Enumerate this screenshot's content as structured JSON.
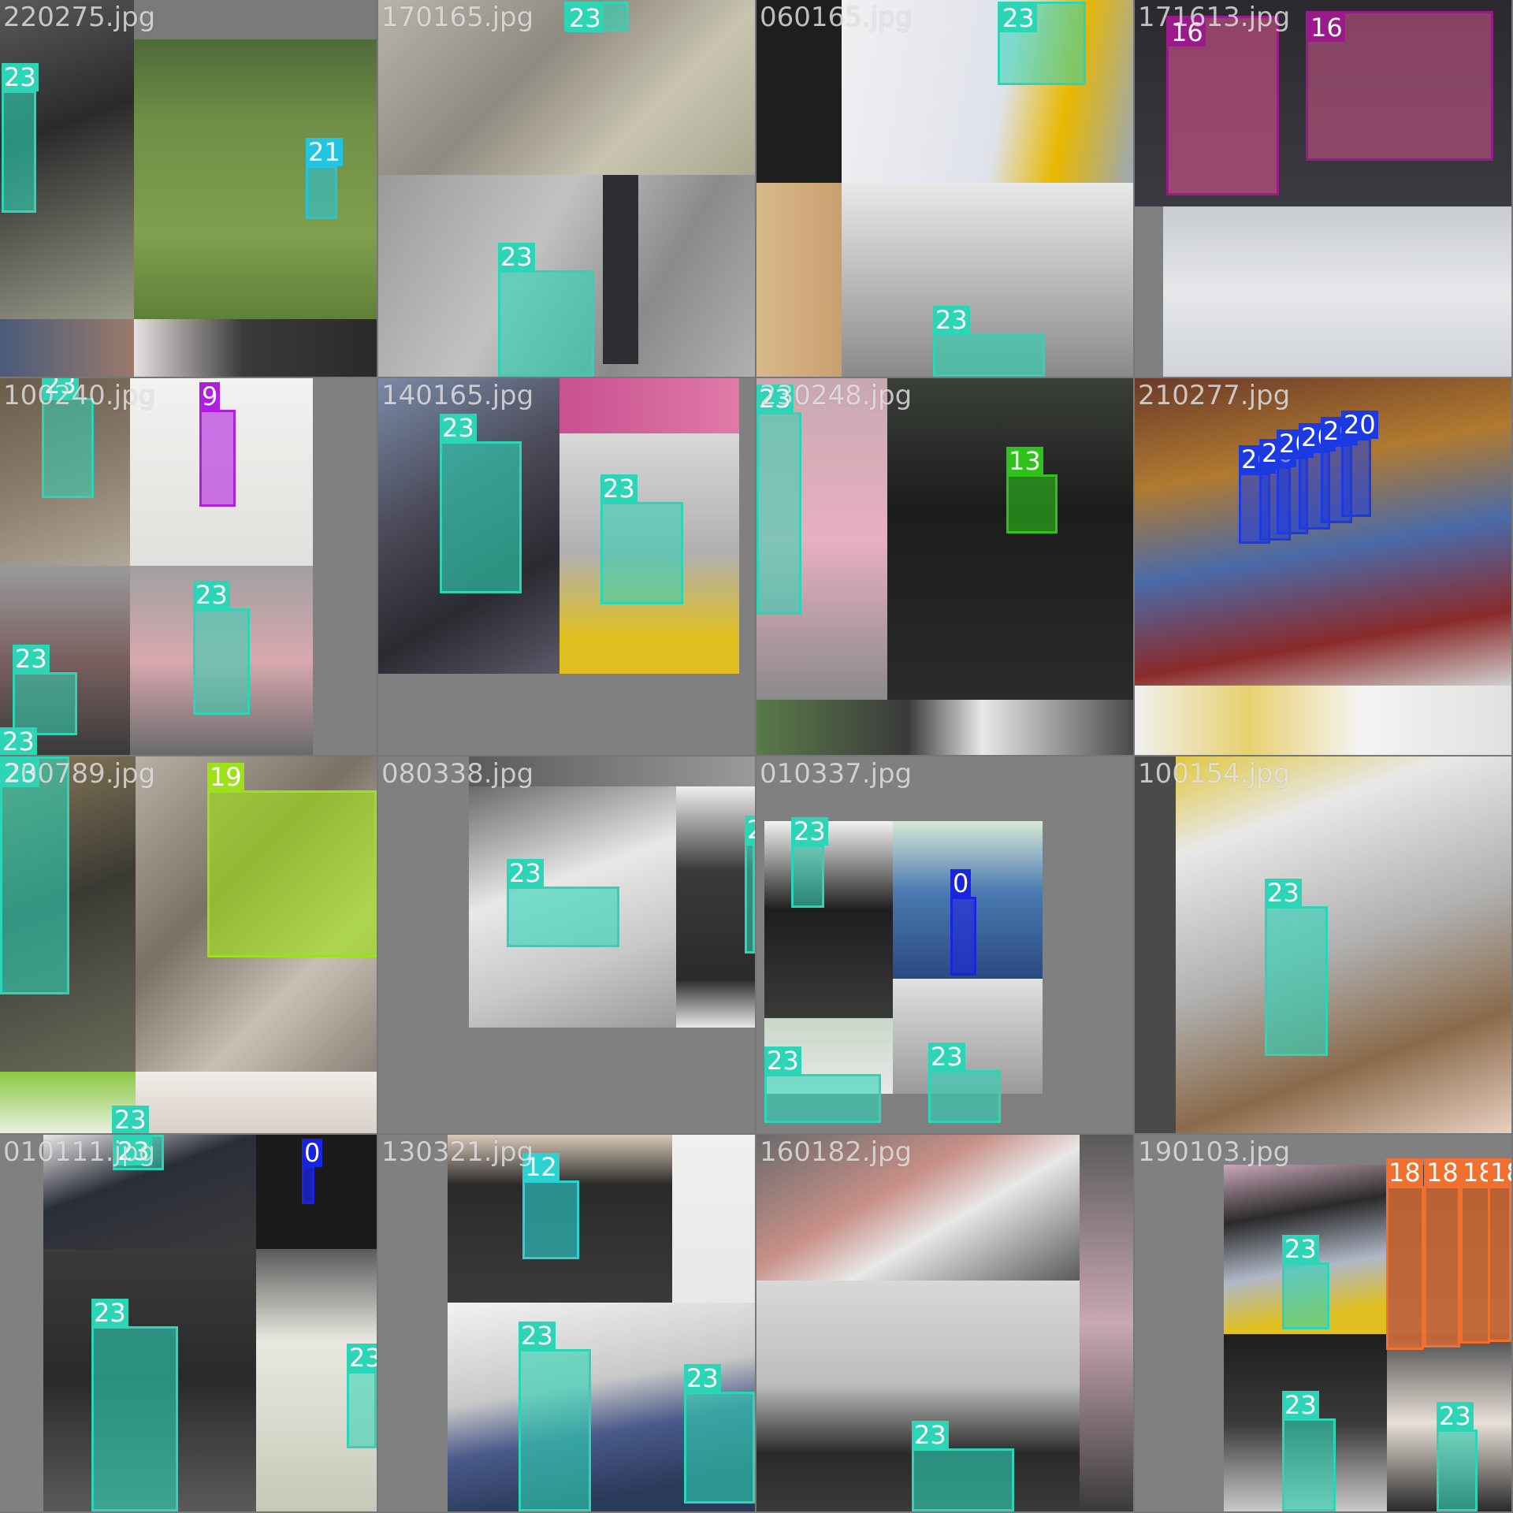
{
  "colors": {
    "c23": "#2dd4b5",
    "c21": "#22c4e0",
    "c16": "#9a1a8a",
    "c9": "#b21ee0",
    "c13": "#2fc21a",
    "c20": "#1c3ae0",
    "c19": "#9ee01a",
    "c0": "#1a24e0",
    "c12": "#2ad2d2",
    "c18": "#f07030",
    "grid_bg": "#777777"
  },
  "tiles": [
    {
      "filename": "220275.jpg"
    },
    {
      "filename": "170165.jpg"
    },
    {
      "filename": "060165.jpg"
    },
    {
      "filename": "171613.jpg"
    },
    {
      "filename": "100240.jpg"
    },
    {
      "filename": "140165.jpg"
    },
    {
      "filename": "230248.jpg"
    },
    {
      "filename": "210277.jpg"
    },
    {
      "filename": "200789.jpg"
    },
    {
      "filename": "080338.jpg"
    },
    {
      "filename": "010337.jpg"
    },
    {
      "filename": "100154.jpg"
    },
    {
      "filename": "010111.jpg"
    },
    {
      "filename": "130321.jpg"
    },
    {
      "filename": "160182.jpg"
    },
    {
      "filename": "190103.jpg"
    }
  ],
  "detections": {
    "t0": [
      "23",
      "21"
    ],
    "t1": [
      "23",
      "23"
    ],
    "t2": [
      "23",
      "23"
    ],
    "t3": [
      "16",
      "16"
    ],
    "t4": [
      "23",
      "9",
      "23",
      "23",
      "23"
    ],
    "t5": [
      "23",
      "23"
    ],
    "t6": [
      "23",
      "13"
    ],
    "t7": [
      "20",
      "20",
      "20",
      "20",
      "20",
      "20"
    ],
    "t8": [
      "23",
      "19",
      "23"
    ],
    "t9": [
      "23",
      "23"
    ],
    "t10": [
      "23",
      "0",
      "23",
      "23"
    ],
    "t11": [
      "23"
    ],
    "t12": [
      "23",
      "0",
      "23",
      "23"
    ],
    "t13": [
      "12",
      "23",
      "23"
    ],
    "t14": [
      "23"
    ],
    "t15": [
      "18",
      "18",
      "18",
      "18",
      "23",
      "23",
      "23"
    ]
  }
}
